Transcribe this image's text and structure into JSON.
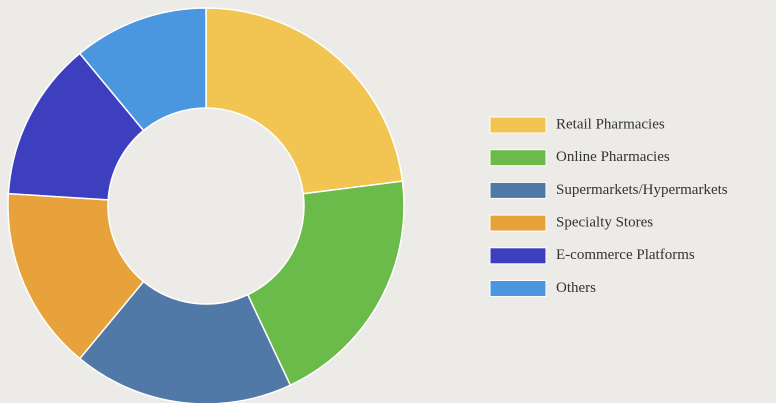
{
  "chart_data": {
    "type": "donut",
    "categories": [
      "Retail Pharmacies",
      "Online Pharmacies",
      "Supermarkets/Hypermarkets",
      "Specialty Stores",
      "E-commerce Platforms",
      "Others"
    ],
    "values": [
      23,
      20,
      18,
      15,
      13,
      11
    ],
    "colors": [
      "#f2c552",
      "#6bbb4a",
      "#5079a8",
      "#e8a23c",
      "#3d3fbf",
      "#4a97e0"
    ],
    "legend": "right"
  }
}
